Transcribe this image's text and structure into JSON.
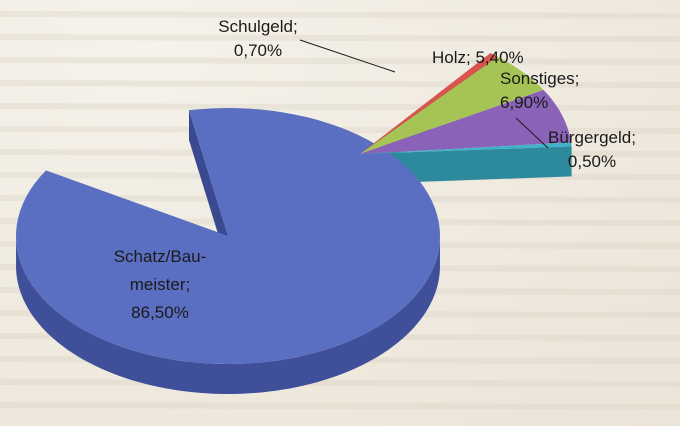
{
  "chart_data": {
    "type": "pie",
    "title": "",
    "subtitle": "",
    "legend": "none",
    "exploded": "small-slices",
    "slices": [
      {
        "label_lines": [
          "Schatz/Bau-",
          "meister;",
          "86,50%"
        ],
        "name": "Schatz/Baumeister",
        "value": 86.5,
        "color": "#5b6fc2",
        "side_color": "#3f4f99"
      },
      {
        "label_lines": [
          "Schulgeld;",
          "0,70%"
        ],
        "name": "Schulgeld",
        "value": 0.7,
        "color": "#d9534f",
        "side_color": "#a33c39"
      },
      {
        "label_lines": [
          "Holz; 5,40%"
        ],
        "name": "Holz",
        "value": 5.4,
        "color": "#a6c456",
        "side_color": "#7d953d"
      },
      {
        "label_lines": [
          "Sonstiges;",
          "6,90%"
        ],
        "name": "Sonstiges",
        "value": 6.9,
        "color": "#8a62b8",
        "side_color": "#66478c"
      },
      {
        "label_lines": [
          "Bürgergeld;",
          "0,50%"
        ],
        "name": "Bürgergeld",
        "value": 0.5,
        "color": "#3fb3c9",
        "side_color": "#2d8a9c"
      }
    ]
  }
}
